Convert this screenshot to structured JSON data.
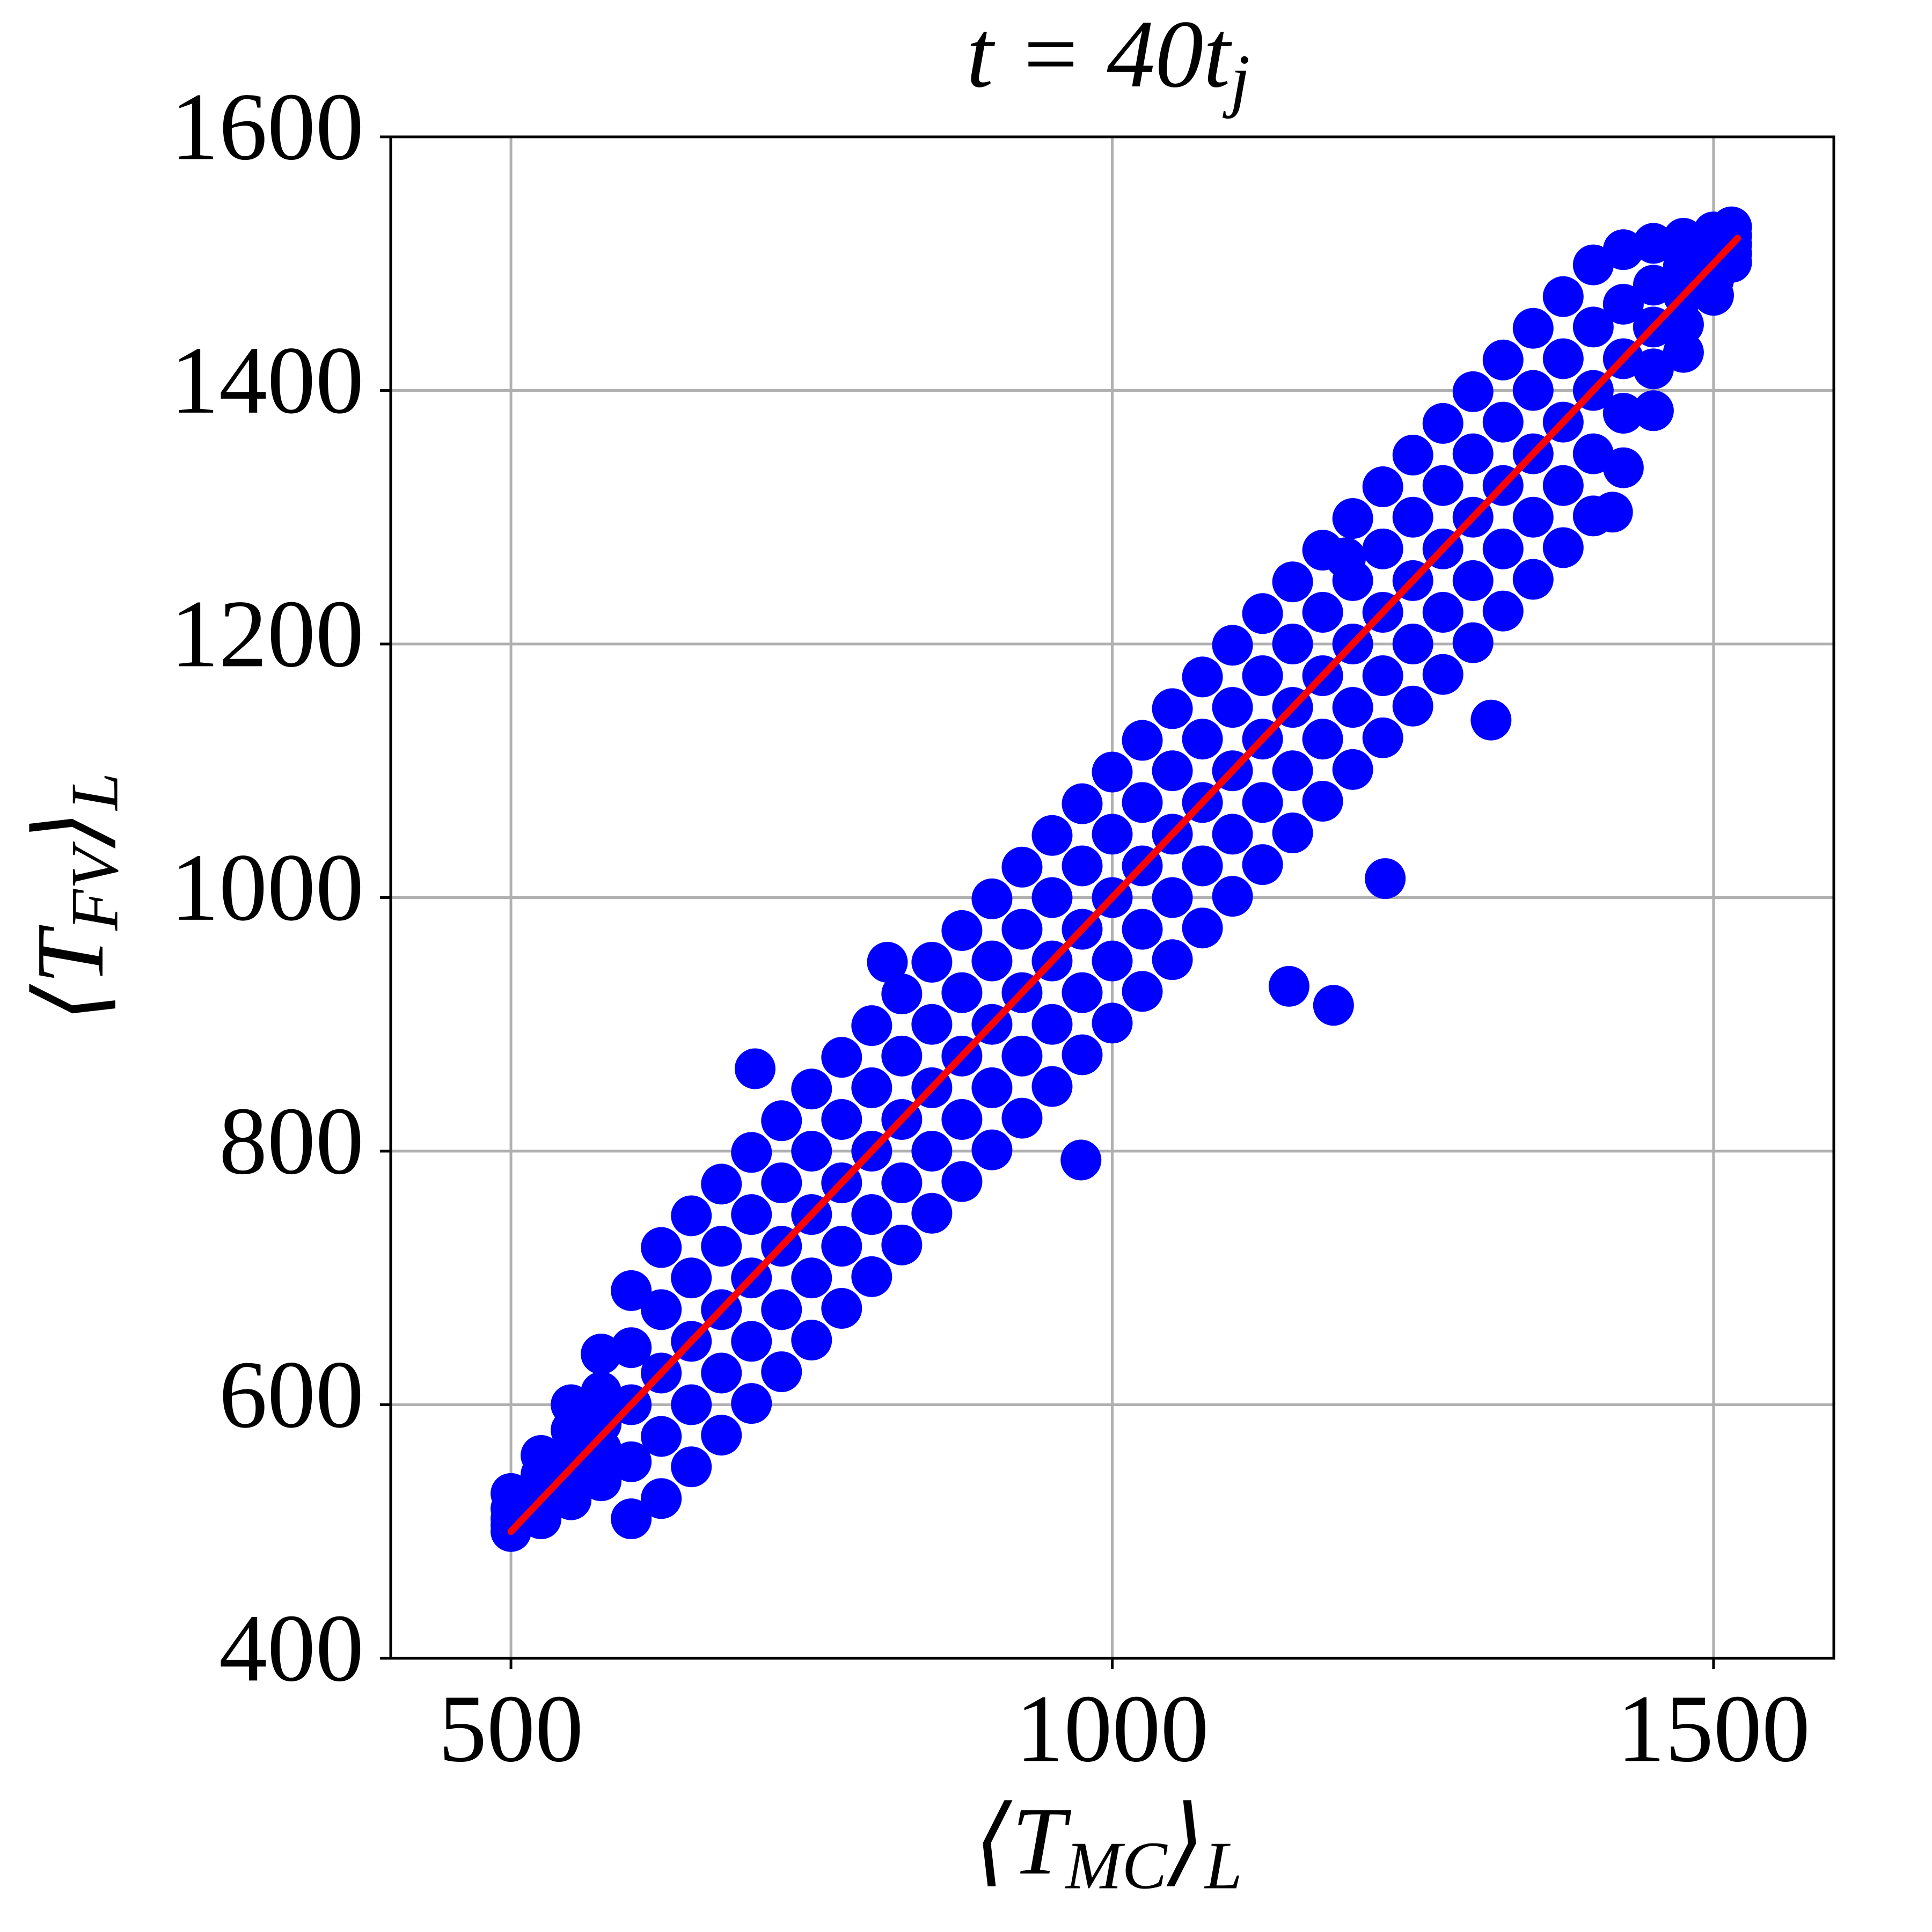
{
  "chart_data": {
    "type": "scatter",
    "title": [
      {
        "text": "t = 40t"
      },
      {
        "sub": "j"
      }
    ],
    "xlabel": [
      {
        "text": "⟨T"
      },
      {
        "sub": "MC"
      },
      {
        "text": "⟩"
      },
      {
        "sub": "L"
      }
    ],
    "ylabel": [
      {
        "text": "⟨T"
      },
      {
        "sub": "FV"
      },
      {
        "text": "⟩"
      },
      {
        "sub": "L"
      }
    ],
    "xlim": [
      400,
      1600
    ],
    "ylim": [
      400,
      1600
    ],
    "xticks": [
      500,
      1000,
      1500
    ],
    "yticks": [
      400,
      600,
      800,
      1000,
      1200,
      1400,
      1600
    ],
    "grid": true,
    "series": [
      {
        "type": "scatter",
        "color": "#0000ff",
        "x": [
          500,
          500,
          500,
          500,
          500,
          525,
          525,
          525,
          525,
          525,
          550,
          550,
          550,
          550,
          550,
          575,
          575,
          575,
          575,
          575,
          600,
          600,
          600,
          600,
          600,
          625,
          625,
          625,
          625,
          625,
          650,
          650,
          650,
          650,
          650,
          675,
          675,
          675,
          675,
          675,
          700,
          700,
          700,
          700,
          700,
          725,
          725,
          725,
          725,
          725,
          750,
          750,
          750,
          750,
          750,
          775,
          775,
          775,
          775,
          775,
          800,
          800,
          800,
          800,
          800,
          825,
          825,
          825,
          825,
          825,
          850,
          850,
          850,
          850,
          850,
          875,
          875,
          875,
          875,
          875,
          900,
          900,
          900,
          900,
          900,
          925,
          925,
          925,
          925,
          925,
          950,
          950,
          950,
          950,
          950,
          975,
          975,
          975,
          975,
          975,
          1000,
          1000,
          1000,
          1000,
          1000,
          1025,
          1025,
          1025,
          1025,
          1025,
          1050,
          1050,
          1050,
          1050,
          1050,
          1075,
          1075,
          1075,
          1075,
          1075,
          1100,
          1100,
          1100,
          1100,
          1100,
          1125,
          1125,
          1125,
          1125,
          1125,
          1150,
          1150,
          1150,
          1150,
          1150,
          1175,
          1175,
          1175,
          1175,
          1175,
          1200,
          1200,
          1200,
          1200,
          1200,
          1225,
          1225,
          1225,
          1225,
          1225,
          1250,
          1250,
          1250,
          1250,
          1250,
          1275,
          1275,
          1275,
          1275,
          1275,
          1300,
          1300,
          1300,
          1300,
          1300,
          1325,
          1325,
          1325,
          1325,
          1325,
          1350,
          1350,
          1350,
          1350,
          1350,
          1375,
          1375,
          1375,
          1375,
          1375,
          1400,
          1400,
          1400,
          1400,
          1400,
          1425,
          1425,
          1425,
          1425,
          1425,
          1450,
          1450,
          1450,
          1450,
          1450,
          1475,
          1475,
          1475,
          1475,
          1475,
          1500,
          1500,
          1500,
          1500,
          1500,
          1515,
          1515,
          1515,
          1515,
          1515,
          1184,
          703,
          1315,
          1147,
          974,
          813,
          1194,
          1227,
          1416
        ],
        "y": [
          500,
          505,
          510,
          518,
          530,
          510,
          520,
          530,
          545,
          560,
          525,
          545,
          560,
          580,
          600,
          540,
          565,
          585,
          610,
          640,
          510,
          555,
          600,
          645,
          690,
          526,
          575,
          625,
          675,
          724,
          551,
          600,
          650,
          700,
          749,
          576,
          625,
          675,
          725,
          774,
          601,
          650,
          700,
          750,
          799,
          626,
          675,
          725,
          775,
          824,
          651,
          700,
          750,
          800,
          849,
          676,
          725,
          775,
          825,
          874,
          701,
          750,
          800,
          850,
          899,
          726,
          775,
          825,
          875,
          924,
          751,
          800,
          850,
          900,
          949,
          776,
          825,
          875,
          925,
          974,
          801,
          850,
          900,
          950,
          999,
          826,
          875,
          925,
          975,
          1024,
          851,
          900,
          950,
          1000,
          1049,
          876,
          925,
          975,
          1025,
          1074,
          901,
          950,
          1000,
          1050,
          1099,
          926,
          975,
          1025,
          1075,
          1124,
          951,
          1000,
          1050,
          1100,
          1149,
          976,
          1025,
          1075,
          1125,
          1174,
          1001,
          1050,
          1100,
          1150,
          1199,
          1026,
          1075,
          1125,
          1175,
          1224,
          1051,
          1100,
          1150,
          1200,
          1249,
          1076,
          1125,
          1175,
          1225,
          1274,
          1101,
          1150,
          1200,
          1250,
          1299,
          1126,
          1175,
          1225,
          1275,
          1324,
          1151,
          1200,
          1250,
          1300,
          1349,
          1176,
          1225,
          1275,
          1325,
          1374,
          1201,
          1250,
          1300,
          1350,
          1399,
          1226,
          1275,
          1325,
          1375,
          1424,
          1251,
          1300,
          1350,
          1400,
          1449,
          1276,
          1325,
          1375,
          1425,
          1474,
          1301,
          1350,
          1400,
          1450,
          1499,
          1339,
          1382,
          1425,
          1468,
          1511,
          1384,
          1417,
          1450,
          1483,
          1516,
          1430,
          1452,
          1475,
          1498,
          1520,
          1475,
          1487,
          1500,
          1513,
          1525,
          1501,
          1508,
          1515,
          1522,
          1529,
          915,
          865,
          1140,
          930,
          793,
          949,
          1268,
          1015,
          1304
        ]
      },
      {
        "type": "line",
        "color": "#ff0000",
        "x": [
          500,
          1520
        ],
        "y": [
          500,
          1520
        ]
      }
    ]
  }
}
